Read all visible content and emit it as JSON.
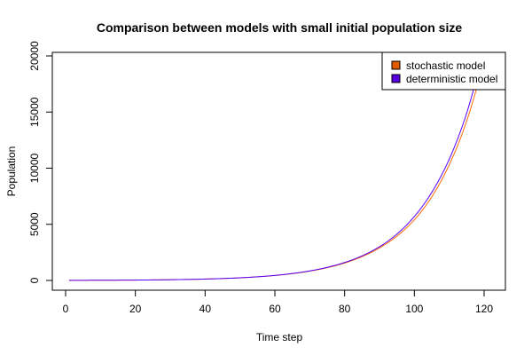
{
  "chart_data": {
    "type": "line",
    "title": "Comparison between models with small initial population size",
    "xlabel": "Time step",
    "ylabel": "Population",
    "xlim": [
      0,
      125
    ],
    "ylim": [
      0,
      20000
    ],
    "x_ticks": [
      0,
      20,
      40,
      60,
      80,
      100,
      120
    ],
    "y_ticks": [
      0,
      5000,
      10000,
      15000,
      20000
    ],
    "grid": false,
    "legend_position": "top-right",
    "series": [
      {
        "name": "stochastic model",
        "color": "#ff6a00",
        "legend_swatch": "#e05a00",
        "x": [
          1,
          10,
          20,
          30,
          40,
          50,
          60,
          70,
          80,
          90,
          95,
          100,
          105,
          110,
          115,
          120
        ],
        "y": [
          10,
          18,
          34,
          65,
          125,
          235,
          440,
          830,
          1550,
          2900,
          3950,
          5400,
          7450,
          10300,
          14200,
          19700
        ]
      },
      {
        "name": "deterministic model",
        "color": "#5500ff",
        "legend_swatch": "#5500dd",
        "x": [
          1,
          10,
          20,
          30,
          40,
          50,
          60,
          70,
          80,
          90,
          95,
          100,
          105,
          110,
          115,
          119
        ],
        "y": [
          10,
          18,
          34,
          65,
          125,
          238,
          450,
          850,
          1600,
          3000,
          4130,
          5700,
          7850,
          10800,
          14900,
          19500
        ]
      }
    ]
  }
}
